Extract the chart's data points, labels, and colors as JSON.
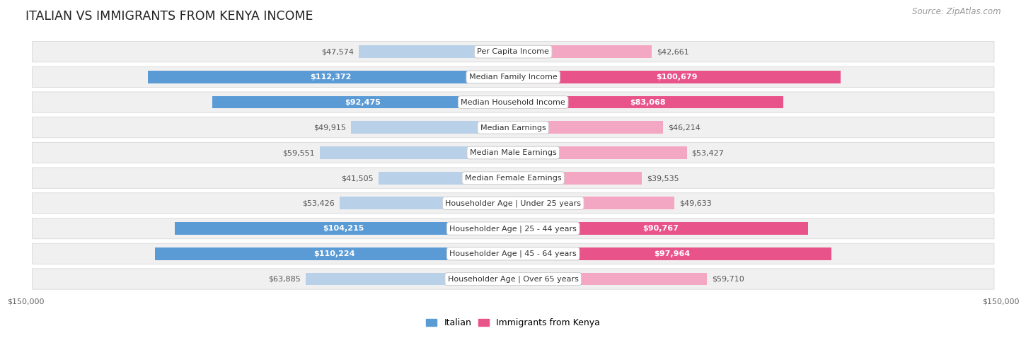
{
  "title": "ITALIAN VS IMMIGRANTS FROM KENYA INCOME",
  "source": "Source: ZipAtlas.com",
  "categories": [
    "Per Capita Income",
    "Median Family Income",
    "Median Household Income",
    "Median Earnings",
    "Median Male Earnings",
    "Median Female Earnings",
    "Householder Age | Under 25 years",
    "Householder Age | 25 - 44 years",
    "Householder Age | 45 - 64 years",
    "Householder Age | Over 65 years"
  ],
  "italian_values": [
    47574,
    112372,
    92475,
    49915,
    59551,
    41505,
    53426,
    104215,
    110224,
    63885
  ],
  "kenya_values": [
    42661,
    100679,
    83068,
    46214,
    53427,
    39535,
    49633,
    90767,
    97964,
    59710
  ],
  "italian_light": "#b8d0e8",
  "italian_dark": "#5b9bd5",
  "kenya_light": "#f4a7c3",
  "kenya_dark": "#e8538a",
  "row_bg_color": "#f0f0f0",
  "row_border_color": "#d8d8d8",
  "max_value": 150000,
  "inside_threshold": 75000,
  "xlabel_left": "$150,000",
  "xlabel_right": "$150,000",
  "legend_italian": "Italian",
  "legend_kenya": "Immigrants from Kenya",
  "title_fontsize": 12.5,
  "source_fontsize": 8.5,
  "cat_fontsize": 8,
  "value_fontsize": 8,
  "legend_fontsize": 9
}
